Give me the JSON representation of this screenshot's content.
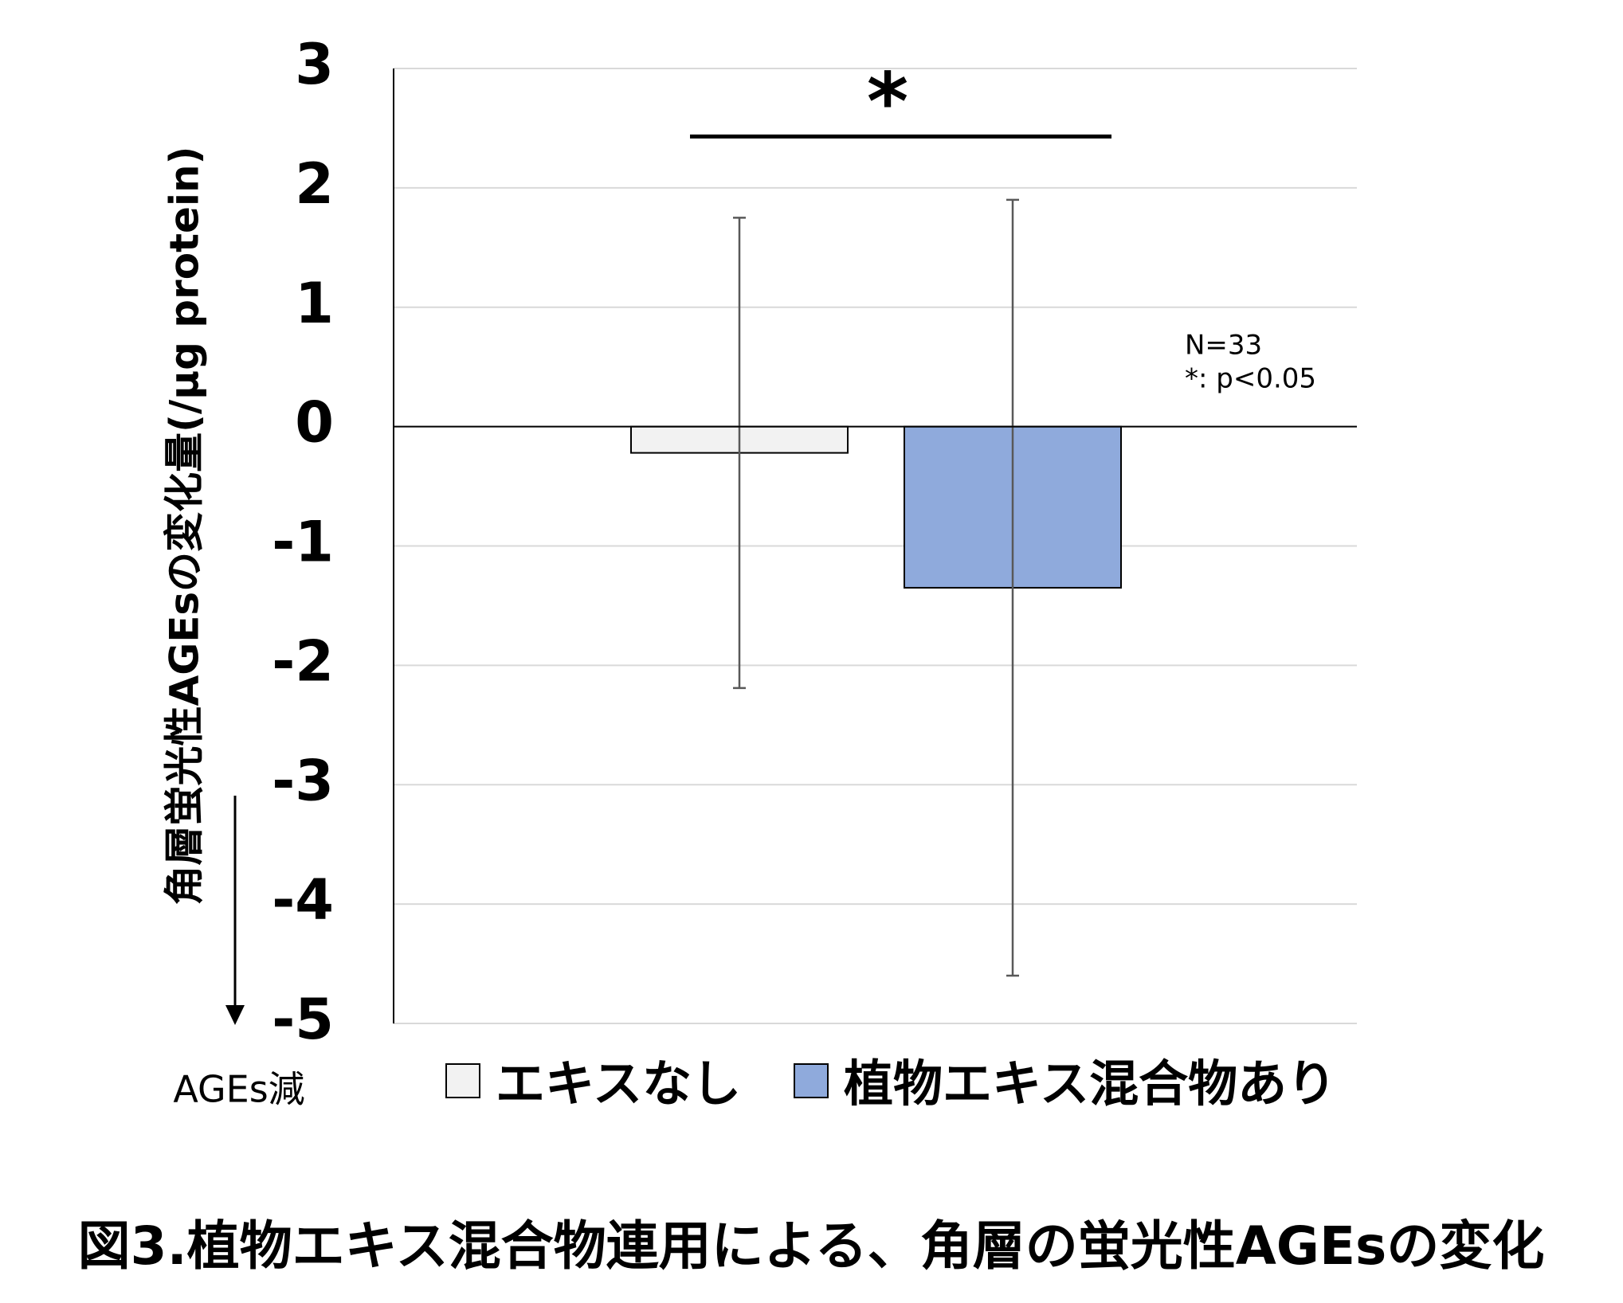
{
  "chart_data": {
    "type": "bar",
    "title": "図3.植物エキス混合物連用による、角層の蛍光性AGEsの変化",
    "y_label": "角層蛍光性AGEsの変化量(/μg protein)",
    "y_direction_note": "AGEs減",
    "significance_marker": "*",
    "notes": [
      "N=33",
      "*: p<0.05"
    ],
    "categories": [
      null
    ],
    "series": [
      {
        "name": "エキスなし",
        "color": "#f2f2f2",
        "values": [
          -0.22
        ],
        "errors": [
          1.97
        ]
      },
      {
        "name": "植物エキス混合物あり",
        "color": "#8faadc",
        "values": [
          -1.35
        ],
        "errors": [
          3.25
        ]
      }
    ],
    "ylim": [
      -5,
      3
    ],
    "yticks": [
      -5,
      -4,
      -3,
      -2,
      -1,
      0,
      1,
      2,
      3
    ],
    "grid": true
  }
}
